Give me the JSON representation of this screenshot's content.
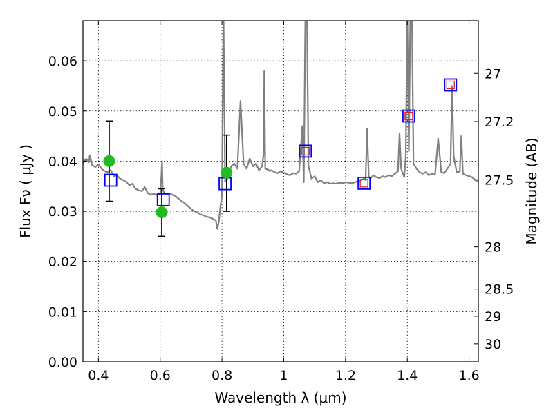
{
  "chart_data": {
    "type": "line",
    "title": "",
    "xlabel": "Wavelength  λ (μm)",
    "ylabel": "Flux  Fν  ( μJy )",
    "y2label": "Magnitude (AB)",
    "xlim": [
      0.35,
      1.63
    ],
    "ylim": [
      0.0,
      0.068
    ],
    "grid": true,
    "x_ticks": [
      0.4,
      0.6,
      0.8,
      1.0,
      1.2,
      1.4,
      1.6
    ],
    "x_tick_labels": [
      "0.4",
      "0.6",
      "0.8",
      "1",
      "1.2",
      "1.4",
      "1.6"
    ],
    "y_ticks": [
      0.0,
      0.01,
      0.02,
      0.03,
      0.04,
      0.05,
      0.06
    ],
    "y_tick_labels": [
      "0.00",
      "0.01",
      "0.02",
      "0.03",
      "0.04",
      "0.05",
      "0.06"
    ],
    "y2_ticks": [
      {
        "label": "27",
        "flux": 0.0575
      },
      {
        "label": "27.2",
        "flux": 0.0479
      },
      {
        "label": "27.5",
        "flux": 0.0363
      },
      {
        "label": "28",
        "flux": 0.0229
      },
      {
        "label": "28.5",
        "flux": 0.0145
      },
      {
        "label": "29",
        "flux": 0.0091
      },
      {
        "label": "30",
        "flux": 0.0036
      }
    ],
    "series": [
      {
        "kind": "spectrum",
        "color": "#808080",
        "x": [
          0.35,
          0.36,
          0.37,
          0.372,
          0.38,
          0.39,
          0.4,
          0.41,
          0.42,
          0.43,
          0.44,
          0.45,
          0.46,
          0.47,
          0.48,
          0.49,
          0.5,
          0.51,
          0.52,
          0.53,
          0.54,
          0.55,
          0.56,
          0.57,
          0.58,
          0.59,
          0.6,
          0.604,
          0.606,
          0.608,
          0.612,
          0.62,
          0.63,
          0.64,
          0.65,
          0.66,
          0.67,
          0.68,
          0.69,
          0.7,
          0.71,
          0.72,
          0.73,
          0.74,
          0.75,
          0.76,
          0.77,
          0.78,
          0.785,
          0.79,
          0.795,
          0.8,
          0.805,
          0.81,
          0.815,
          0.82,
          0.83,
          0.84,
          0.85,
          0.86,
          0.87,
          0.88,
          0.89,
          0.9,
          0.91,
          0.92,
          0.93,
          0.935,
          0.937,
          0.94,
          0.95,
          0.955,
          0.96,
          0.97,
          0.98,
          0.99,
          1.0,
          1.01,
          1.02,
          1.03,
          1.04,
          1.05,
          1.06,
          1.065,
          1.07,
          1.075,
          1.08,
          1.09,
          1.1,
          1.11,
          1.12,
          1.13,
          1.14,
          1.15,
          1.16,
          1.17,
          1.18,
          1.19,
          1.2,
          1.21,
          1.22,
          1.23,
          1.24,
          1.25,
          1.26,
          1.265,
          1.27,
          1.275,
          1.28,
          1.29,
          1.3,
          1.31,
          1.32,
          1.33,
          1.34,
          1.35,
          1.36,
          1.37,
          1.375,
          1.38,
          1.39,
          1.395,
          1.4,
          1.405,
          1.41,
          1.415,
          1.42,
          1.43,
          1.44,
          1.45,
          1.46,
          1.47,
          1.48,
          1.49,
          1.5,
          1.51,
          1.52,
          1.53,
          1.54,
          1.545,
          1.55,
          1.56,
          1.57,
          1.575,
          1.58,
          1.59,
          1.6,
          1.61,
          1.62,
          1.63
        ],
        "values": [
          0.0395,
          0.0405,
          0.0398,
          0.0412,
          0.0392,
          0.0388,
          0.0394,
          0.0385,
          0.038,
          0.0378,
          0.0382,
          0.037,
          0.0372,
          0.0365,
          0.0362,
          0.0359,
          0.0352,
          0.0355,
          0.0345,
          0.0342,
          0.034,
          0.0348,
          0.0336,
          0.0333,
          0.0335,
          0.0332,
          0.0335,
          0.037,
          0.04,
          0.0345,
          0.0338,
          0.0334,
          0.0336,
          0.0333,
          0.033,
          0.0325,
          0.032,
          0.0316,
          0.031,
          0.0305,
          0.03,
          0.0298,
          0.0294,
          0.0292,
          0.0289,
          0.0288,
          0.0285,
          0.0282,
          0.0265,
          0.028,
          0.031,
          0.033,
          0.07,
          0.036,
          0.0362,
          0.037,
          0.039,
          0.0395,
          0.0385,
          0.052,
          0.0395,
          0.0385,
          0.0405,
          0.039,
          0.0395,
          0.0382,
          0.039,
          0.0415,
          0.058,
          0.0385,
          0.0383,
          0.038,
          0.0382,
          0.0378,
          0.0376,
          0.038,
          0.0377,
          0.0374,
          0.0372,
          0.0376,
          0.0375,
          0.038,
          0.047,
          0.0358,
          0.07,
          0.07,
          0.039,
          0.0365,
          0.037,
          0.0358,
          0.0362,
          0.0356,
          0.0358,
          0.0355,
          0.0356,
          0.0355,
          0.0357,
          0.0356,
          0.0358,
          0.0357,
          0.0356,
          0.0358,
          0.036,
          0.0362,
          0.0365,
          0.0362,
          0.0465,
          0.037,
          0.0365,
          0.0372,
          0.0368,
          0.0366,
          0.037,
          0.0368,
          0.0372,
          0.037,
          0.0375,
          0.038,
          0.0455,
          0.0385,
          0.0368,
          0.041,
          0.07,
          0.042,
          0.07,
          0.07,
          0.0395,
          0.0385,
          0.0378,
          0.0375,
          0.0378,
          0.0372,
          0.0375,
          0.0373,
          0.0445,
          0.0378,
          0.0376,
          0.0385,
          0.0395,
          0.055,
          0.041,
          0.0378,
          0.0379,
          0.045,
          0.0375,
          0.0372,
          0.037,
          0.0368,
          0.0362,
          0.036
        ]
      },
      {
        "kind": "observed",
        "color": "#22bb22",
        "x": [
          0.435,
          0.605,
          0.815
        ],
        "values": [
          0.04,
          0.0298,
          0.0377
        ],
        "err_low": [
          0.032,
          0.025,
          0.03
        ],
        "err_high": [
          0.048,
          0.0345,
          0.0452
        ]
      },
      {
        "kind": "model_blue_squares",
        "color": "#0000ff",
        "x": [
          0.44,
          0.61,
          0.81,
          1.07,
          1.26,
          1.405,
          1.54
        ],
        "values": [
          0.0362,
          0.0323,
          0.0355,
          0.042,
          0.0356,
          0.049,
          0.0552
        ]
      },
      {
        "kind": "model_red_squares",
        "color": "#dd2222",
        "x": [
          1.07,
          1.26,
          1.405,
          1.54
        ],
        "values": [
          0.042,
          0.0356,
          0.049,
          0.0552
        ]
      }
    ]
  }
}
